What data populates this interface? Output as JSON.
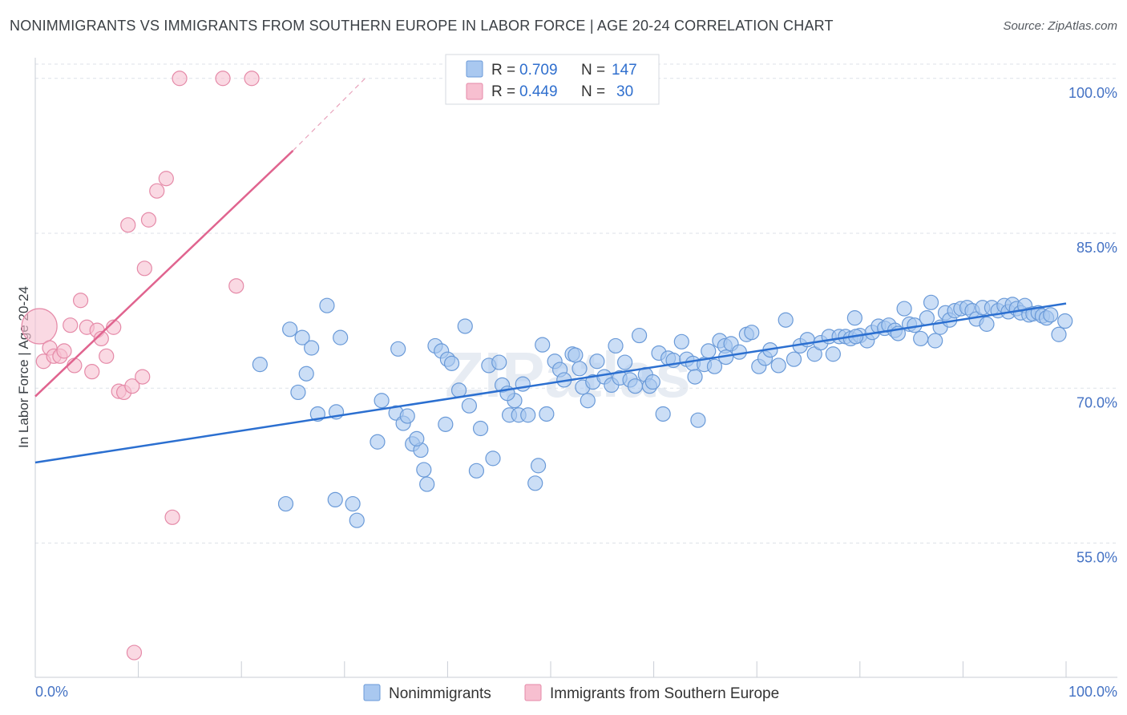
{
  "title": "NONIMMIGRANTS VS IMMIGRANTS FROM SOUTHERN EUROPE IN LABOR FORCE | AGE 20-24 CORRELATION CHART",
  "source": "Source: ZipAtlas.com",
  "watermark": "ZIPatlas",
  "legend": {
    "rows": [
      {
        "r_label": "R =",
        "r_value": "0.709",
        "n_label": "N =",
        "n_value": "147"
      },
      {
        "r_label": "R =",
        "r_value": "0.449",
        "n_label": "N =",
        "n_value": "30"
      }
    ]
  },
  "colors": {
    "blue_fill": "#a9c8f0",
    "blue_stroke": "#6a9ad8",
    "blue_line": "#2b6fd0",
    "pink_fill": "#f7bfd0",
    "pink_stroke": "#e58aa8",
    "pink_line": "#e0648f",
    "tick_text": "#4472c4",
    "grid": "#dde2e8"
  },
  "chart_data": {
    "type": "scatter",
    "title": "NONIMMIGRANTS VS IMMIGRANTS FROM SOUTHERN EUROPE IN LABOR FORCE | AGE 20-24 CORRELATION CHART",
    "xlabel": "",
    "ylabel": "In Labor Force | Age 20-24",
    "xlim": [
      0,
      100
    ],
    "ylim": [
      42,
      102
    ],
    "x_tick_labels": [
      "0.0%",
      "100.0%"
    ],
    "y_ticks": [
      55,
      70,
      85,
      100
    ],
    "y_tick_labels": [
      "55.0%",
      "70.0%",
      "85.0%",
      "100.0%"
    ],
    "bottom_legend": [
      "Nonimmigrants",
      "Immigrants from Southern Europe"
    ],
    "series": [
      {
        "name": "Nonimmigrants",
        "R": 0.709,
        "N": 147,
        "trend": {
          "x": [
            0,
            100
          ],
          "y": [
            62.8,
            78.2
          ]
        },
        "points": [
          [
            21.8,
            72.3
          ],
          [
            24.7,
            75.7
          ],
          [
            25.9,
            74.9
          ],
          [
            26.3,
            71.4
          ],
          [
            25.5,
            69.6
          ],
          [
            26.8,
            73.9
          ],
          [
            28.3,
            78.0
          ],
          [
            27.4,
            67.5
          ],
          [
            29.6,
            74.9
          ],
          [
            29.2,
            67.7
          ],
          [
            24.3,
            58.8
          ],
          [
            29.1,
            59.2
          ],
          [
            30.8,
            58.8
          ],
          [
            31.2,
            57.2
          ],
          [
            33.2,
            64.8
          ],
          [
            35.2,
            73.8
          ],
          [
            33.6,
            68.8
          ],
          [
            35.0,
            67.6
          ],
          [
            35.7,
            66.6
          ],
          [
            36.1,
            67.3
          ],
          [
            36.6,
            64.6
          ],
          [
            37.4,
            64.0
          ],
          [
            37.7,
            62.1
          ],
          [
            38.0,
            60.7
          ],
          [
            38.8,
            74.1
          ],
          [
            39.4,
            73.6
          ],
          [
            40.0,
            72.8
          ],
          [
            40.4,
            72.4
          ],
          [
            39.8,
            66.5
          ],
          [
            41.1,
            69.8
          ],
          [
            41.7,
            76.0
          ],
          [
            42.1,
            68.3
          ],
          [
            42.8,
            62.0
          ],
          [
            43.2,
            66.1
          ],
          [
            44.0,
            72.2
          ],
          [
            44.4,
            63.2
          ],
          [
            45.0,
            72.5
          ],
          [
            45.3,
            70.3
          ],
          [
            46.0,
            67.4
          ],
          [
            46.5,
            68.8
          ],
          [
            46.9,
            67.4
          ],
          [
            47.3,
            70.4
          ],
          [
            47.8,
            67.4
          ],
          [
            48.5,
            60.8
          ],
          [
            48.8,
            62.5
          ],
          [
            49.2,
            74.2
          ],
          [
            49.6,
            67.5
          ],
          [
            50.4,
            72.6
          ],
          [
            50.9,
            71.8
          ],
          [
            51.3,
            70.8
          ],
          [
            52.1,
            73.3
          ],
          [
            52.4,
            73.2
          ],
          [
            53.1,
            70.1
          ],
          [
            53.6,
            68.8
          ],
          [
            54.1,
            70.6
          ],
          [
            54.5,
            72.6
          ],
          [
            55.2,
            71.1
          ],
          [
            56.3,
            74.1
          ],
          [
            55.9,
            70.3
          ],
          [
            56.7,
            71.0
          ],
          [
            57.2,
            72.5
          ],
          [
            57.7,
            70.8
          ],
          [
            58.2,
            70.2
          ],
          [
            58.6,
            75.1
          ],
          [
            59.2,
            71.3
          ],
          [
            59.6,
            70.2
          ],
          [
            60.5,
            73.4
          ],
          [
            60.9,
            67.5
          ],
          [
            61.4,
            72.9
          ],
          [
            61.9,
            72.7
          ],
          [
            62.7,
            74.5
          ],
          [
            63.2,
            72.8
          ],
          [
            63.8,
            72.4
          ],
          [
            64.3,
            66.9
          ],
          [
            64.0,
            71.1
          ],
          [
            64.9,
            72.3
          ],
          [
            65.3,
            73.6
          ],
          [
            65.9,
            72.1
          ],
          [
            66.4,
            74.6
          ],
          [
            66.9,
            74.1
          ],
          [
            67.5,
            74.3
          ],
          [
            68.3,
            73.5
          ],
          [
            69.0,
            75.2
          ],
          [
            69.5,
            75.4
          ],
          [
            70.2,
            72.1
          ],
          [
            70.8,
            72.9
          ],
          [
            71.3,
            73.7
          ],
          [
            72.1,
            72.2
          ],
          [
            72.8,
            76.6
          ],
          [
            73.6,
            72.8
          ],
          [
            74.2,
            74.1
          ],
          [
            74.9,
            74.7
          ],
          [
            75.6,
            73.3
          ],
          [
            76.2,
            74.4
          ],
          [
            77.0,
            75.0
          ],
          [
            77.4,
            73.3
          ],
          [
            78.0,
            75.0
          ],
          [
            78.6,
            75.0
          ],
          [
            79.1,
            74.8
          ],
          [
            79.5,
            76.8
          ],
          [
            80.0,
            75.1
          ],
          [
            80.7,
            74.6
          ],
          [
            81.2,
            75.4
          ],
          [
            81.8,
            76.0
          ],
          [
            82.4,
            75.8
          ],
          [
            82.8,
            76.1
          ],
          [
            83.4,
            75.6
          ],
          [
            83.7,
            75.3
          ],
          [
            84.3,
            77.7
          ],
          [
            84.8,
            76.2
          ],
          [
            85.3,
            76.1
          ],
          [
            85.9,
            74.8
          ],
          [
            86.5,
            76.8
          ],
          [
            86.9,
            78.3
          ],
          [
            87.3,
            74.6
          ],
          [
            87.8,
            75.9
          ],
          [
            88.3,
            77.3
          ],
          [
            88.7,
            76.6
          ],
          [
            89.2,
            77.5
          ],
          [
            89.8,
            77.7
          ],
          [
            90.4,
            77.8
          ],
          [
            90.9,
            77.5
          ],
          [
            91.3,
            76.7
          ],
          [
            91.9,
            77.8
          ],
          [
            92.3,
            76.2
          ],
          [
            92.8,
            77.8
          ],
          [
            93.4,
            77.5
          ],
          [
            94.0,
            78.0
          ],
          [
            94.4,
            77.4
          ],
          [
            94.8,
            78.1
          ],
          [
            95.2,
            77.7
          ],
          [
            95.6,
            77.3
          ],
          [
            96.0,
            78.0
          ],
          [
            96.4,
            77.1
          ],
          [
            96.8,
            77.2
          ],
          [
            97.3,
            77.3
          ],
          [
            97.7,
            77.0
          ],
          [
            98.1,
            76.8
          ],
          [
            98.5,
            77.1
          ],
          [
            99.3,
            75.2
          ],
          [
            99.9,
            76.5
          ],
          [
            79.6,
            75.0
          ],
          [
            67.0,
            73.0
          ],
          [
            59.9,
            70.6
          ],
          [
            52.8,
            71.9
          ],
          [
            45.8,
            69.5
          ],
          [
            37.0,
            65.1
          ]
        ]
      },
      {
        "name": "Immigrants from Southern Europe",
        "R": 0.449,
        "N": 30,
        "trend": {
          "x": [
            0,
            25
          ],
          "y": [
            69.2,
            93.0
          ]
        },
        "trend_dashed": {
          "x": [
            25,
            32
          ],
          "y": [
            93.0,
            100.0
          ]
        },
        "points": [
          [
            0.4,
            76.0
          ],
          [
            0.8,
            72.6
          ],
          [
            1.4,
            73.9
          ],
          [
            1.8,
            73.1
          ],
          [
            2.4,
            73.1
          ],
          [
            2.8,
            73.6
          ],
          [
            3.4,
            76.1
          ],
          [
            3.8,
            72.2
          ],
          [
            4.4,
            78.5
          ],
          [
            5.0,
            75.9
          ],
          [
            5.5,
            71.6
          ],
          [
            6.0,
            75.6
          ],
          [
            6.4,
            74.8
          ],
          [
            6.9,
            73.1
          ],
          [
            7.6,
            75.9
          ],
          [
            8.1,
            69.7
          ],
          [
            8.6,
            69.6
          ],
          [
            9.4,
            70.2
          ],
          [
            10.4,
            71.1
          ],
          [
            10.6,
            81.6
          ],
          [
            11.0,
            86.3
          ],
          [
            11.8,
            89.1
          ],
          [
            12.7,
            90.3
          ],
          [
            9.0,
            85.8
          ],
          [
            13.3,
            57.5
          ],
          [
            9.6,
            44.4
          ],
          [
            14.0,
            100.0
          ],
          [
            18.2,
            100.0
          ],
          [
            21.0,
            100.0
          ],
          [
            19.5,
            79.9
          ]
        ]
      }
    ]
  }
}
